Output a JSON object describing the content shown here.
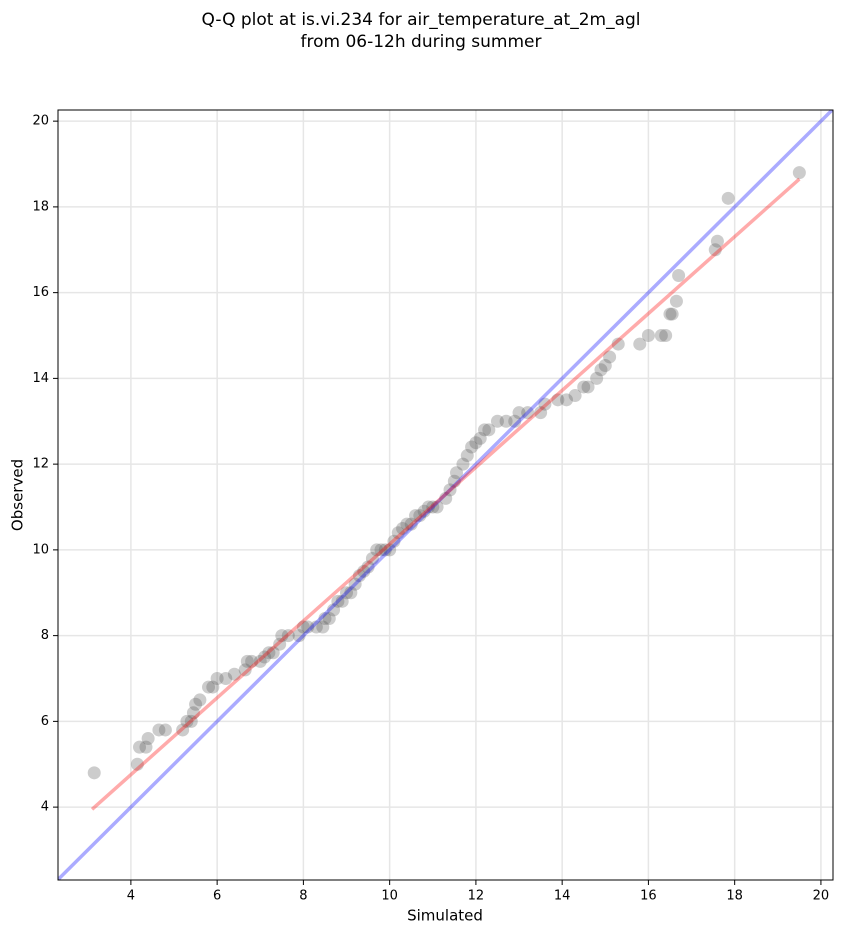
{
  "chart_data": {
    "type": "scatter",
    "title": [
      "Q-Q plot at is.vi.234 for air_temperature_at_2m_agl",
      "from 06-12h during summer"
    ],
    "xlabel": "Simulated",
    "ylabel": "Observed",
    "xlim": [
      2.31,
      20.28
    ],
    "ylim": [
      2.3,
      20.26
    ],
    "xticks": [
      4,
      6,
      8,
      10,
      12,
      14,
      16,
      18,
      20
    ],
    "yticks": [
      4,
      6,
      8,
      10,
      12,
      14,
      16,
      18,
      20
    ],
    "grid": true,
    "color": "#555555",
    "alpha": 0.3,
    "x": [
      3.15,
      4.15,
      4.2,
      4.35,
      4.4,
      4.65,
      4.8,
      5.2,
      5.3,
      5.4,
      5.45,
      5.5,
      5.6,
      5.8,
      5.9,
      6.0,
      6.2,
      6.4,
      6.65,
      6.7,
      6.8,
      7.0,
      7.1,
      7.2,
      7.3,
      7.45,
      7.5,
      7.65,
      7.9,
      8.0,
      8.1,
      8.3,
      8.45,
      8.5,
      8.6,
      8.7,
      8.8,
      8.9,
      9.0,
      9.1,
      9.2,
      9.3,
      9.4,
      9.5,
      9.6,
      9.7,
      9.8,
      9.9,
      10.0,
      10.1,
      10.2,
      10.3,
      10.4,
      10.5,
      10.6,
      10.7,
      10.8,
      10.9,
      11.0,
      11.1,
      11.3,
      11.4,
      11.5,
      11.55,
      11.7,
      11.8,
      11.9,
      12.0,
      12.1,
      12.2,
      12.3,
      12.5,
      12.7,
      12.9,
      13.0,
      13.2,
      13.5,
      13.6,
      13.9,
      14.1,
      14.3,
      14.5,
      14.6,
      14.8,
      14.9,
      15.0,
      15.1,
      15.3,
      15.8,
      16.0,
      16.3,
      16.4,
      16.5,
      16.55,
      16.65,
      16.7,
      17.55,
      17.6,
      17.85,
      19.5
    ],
    "y": [
      4.8,
      5.0,
      5.4,
      5.4,
      5.6,
      5.8,
      5.8,
      5.8,
      6.0,
      6.0,
      6.2,
      6.4,
      6.5,
      6.8,
      6.8,
      7.0,
      7.0,
      7.1,
      7.2,
      7.4,
      7.4,
      7.4,
      7.5,
      7.6,
      7.6,
      7.8,
      8.0,
      8.0,
      8.0,
      8.2,
      8.2,
      8.2,
      8.2,
      8.4,
      8.4,
      8.6,
      8.8,
      8.8,
      9.0,
      9.0,
      9.2,
      9.4,
      9.5,
      9.6,
      9.8,
      10.0,
      10.0,
      10.0,
      10.0,
      10.2,
      10.4,
      10.5,
      10.6,
      10.6,
      10.8,
      10.8,
      10.9,
      11.0,
      11.0,
      11.0,
      11.2,
      11.4,
      11.6,
      11.8,
      12.0,
      12.2,
      12.4,
      12.5,
      12.6,
      12.8,
      12.8,
      13.0,
      13.0,
      13.0,
      13.2,
      13.2,
      13.2,
      13.4,
      13.5,
      13.5,
      13.6,
      13.8,
      13.8,
      14.0,
      14.2,
      14.3,
      14.5,
      14.8,
      14.8,
      15.0,
      15.0,
      15.0,
      15.5,
      15.5,
      15.8,
      16.4,
      17.0,
      17.2,
      18.2,
      18.8
    ],
    "lines": [
      {
        "color": "#0000ff",
        "alpha": 0.33,
        "x": [
          2.3,
          20.3
        ],
        "y": [
          2.3,
          20.3
        ]
      },
      {
        "color": "#ff0000",
        "alpha": 0.33,
        "x": [
          3.1,
          19.5
        ],
        "y": [
          3.95,
          18.65
        ]
      }
    ]
  }
}
